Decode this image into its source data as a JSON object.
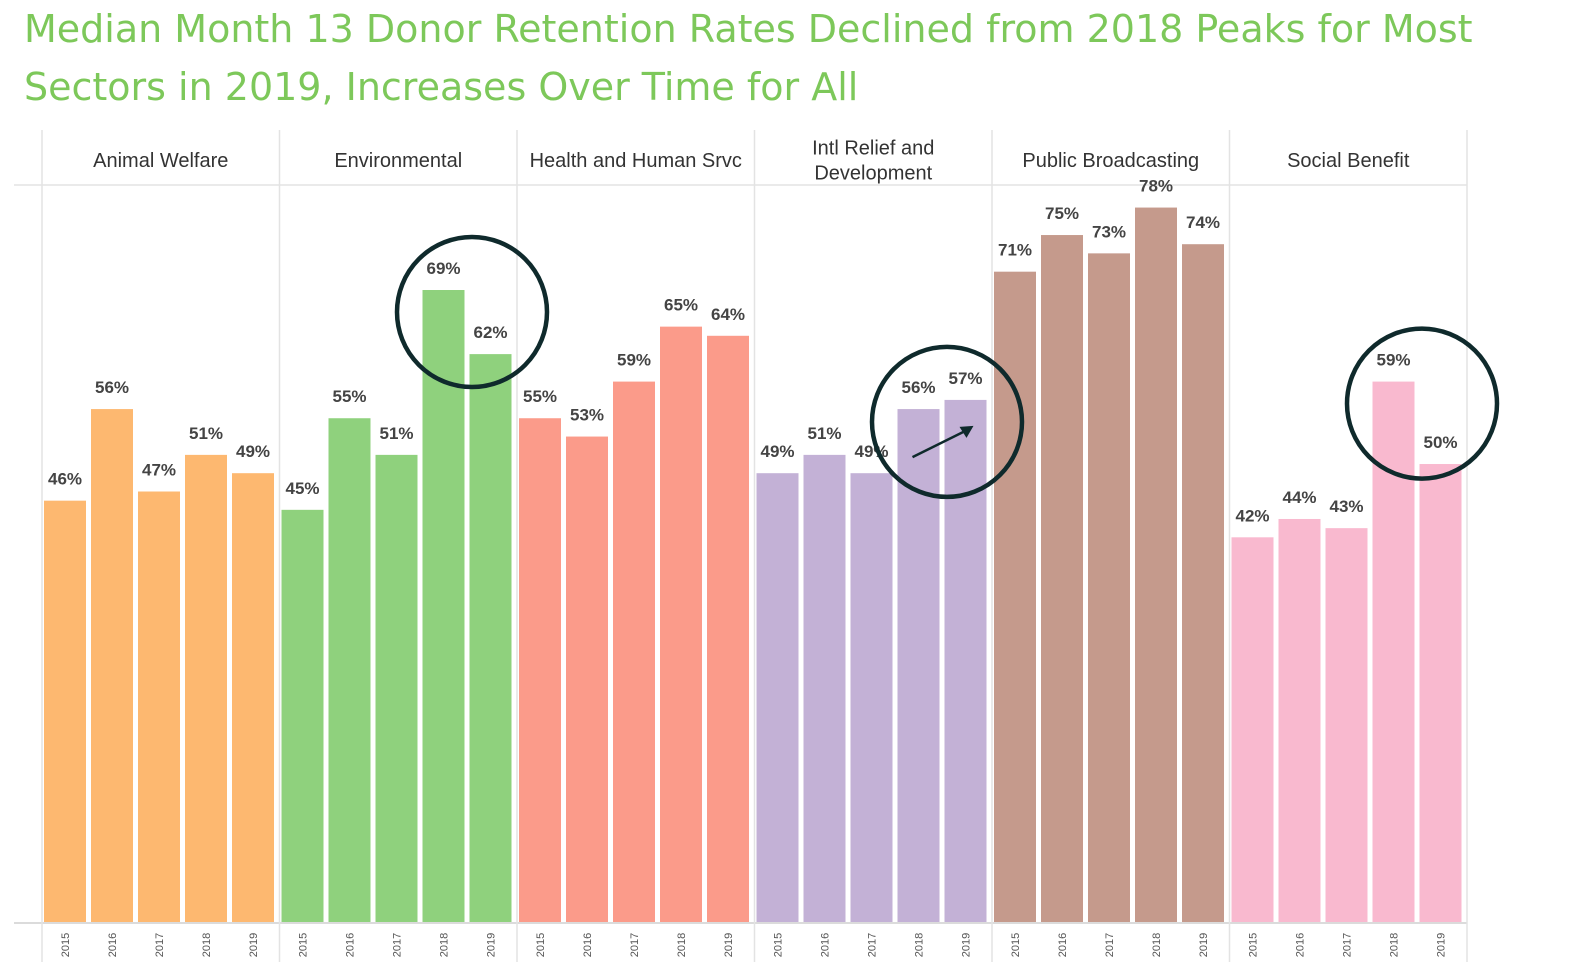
{
  "title": {
    "line1": "Median Month 13 Donor Retention Rates Declined from 2018 Peaks for Most",
    "line2": "Sectors in 2019, Increases Over Time for All"
  },
  "chart_data": {
    "type": "bar",
    "title": "Median Month 13 Donor Retention Rates Declined from 2018 Peaks for Most Sectors in 2019, Increases Over Time for All",
    "years": [
      "2015",
      "2016",
      "2017",
      "2018",
      "2019"
    ],
    "ylim": [
      0,
      80
    ],
    "value_suffix": "%",
    "panels": [
      {
        "name": "Animal Welfare",
        "label_lines": [
          "Animal Welfare"
        ],
        "color": "#fdb870",
        "values": [
          46,
          56,
          47,
          51,
          49
        ]
      },
      {
        "name": "Environmental",
        "label_lines": [
          "Environmental"
        ],
        "color": "#8fd17d",
        "values": [
          45,
          55,
          51,
          69,
          62
        ]
      },
      {
        "name": "Health and Human Srvc",
        "label_lines": [
          "Health and Human Srvc"
        ],
        "color": "#fb9b8a",
        "values": [
          55,
          53,
          59,
          65,
          64
        ]
      },
      {
        "name": "Intl Relief and Development",
        "label_lines": [
          "Intl Relief and",
          "Development"
        ],
        "color": "#c3b1d6",
        "values": [
          49,
          51,
          49,
          56,
          57
        ]
      },
      {
        "name": "Public Broadcasting",
        "label_lines": [
          "Public Broadcasting"
        ],
        "color": "#c59a8c",
        "values": [
          71,
          75,
          73,
          78,
          74
        ]
      },
      {
        "name": "Social Benefit",
        "label_lines": [
          "Social Benefit"
        ],
        "color": "#f9b9cf",
        "values": [
          42,
          44,
          43,
          59,
          50
        ]
      }
    ],
    "annotations": [
      {
        "type": "circle",
        "panel": "Environmental",
        "highlights": [
          "2018",
          "2019"
        ]
      },
      {
        "type": "circle",
        "panel": "Intl Relief and Development",
        "highlights": [
          "2018",
          "2019"
        ]
      },
      {
        "type": "arrow",
        "panel": "Intl Relief and Development",
        "direction": "up-right"
      },
      {
        "type": "circle",
        "panel": "Social Benefit",
        "highlights": [
          "2018",
          "2019"
        ]
      }
    ],
    "annotation_color": "#0f2a2c"
  }
}
